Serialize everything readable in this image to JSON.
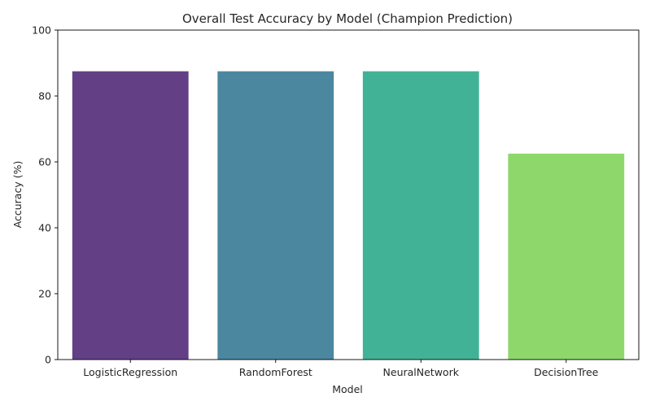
{
  "chart_data": {
    "type": "bar",
    "title": "Overall Test Accuracy by Model (Champion Prediction)",
    "xlabel": "Model",
    "ylabel": "Accuracy (%)",
    "categories": [
      "LogisticRegression",
      "RandomForest",
      "NeuralNetwork",
      "DecisionTree"
    ],
    "values": [
      87.5,
      87.5,
      87.5,
      62.5
    ],
    "colors": [
      "#481f70",
      "#2c728e",
      "#21a585",
      "#7ad151"
    ],
    "bar_opacity": 0.85,
    "ylim": [
      0,
      100
    ],
    "yticks": [
      0,
      20,
      40,
      60,
      80,
      100
    ],
    "grid": false,
    "legend": "none"
  }
}
